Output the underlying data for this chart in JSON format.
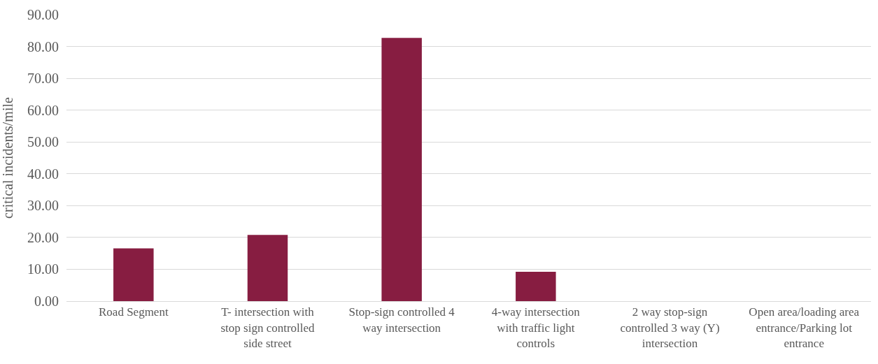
{
  "chart_data": {
    "type": "bar",
    "ylabel": "critical incidents/mile",
    "categories": [
      "Road Segment",
      "T- intersection with stop sign controlled side street",
      "Stop-sign controlled 4 way intersection",
      "4-way intersection with traffic light controls",
      "2 way stop-sign controlled 3 way (Y) intersection",
      "Open area/loading area entrance/Parking lot entrance"
    ],
    "values": [
      16.6,
      20.8,
      82.7,
      9.2,
      0,
      0
    ],
    "color": "#871d41",
    "ylim": [
      0,
      90
    ],
    "yticks": [
      {
        "value": 0,
        "label": "0.00"
      },
      {
        "value": 10,
        "label": "10.00"
      },
      {
        "value": 20,
        "label": "20.00"
      },
      {
        "value": 30,
        "label": "30.00"
      },
      {
        "value": 40,
        "label": "40.00"
      },
      {
        "value": 50,
        "label": "50.00"
      },
      {
        "value": 60,
        "label": "60.00"
      },
      {
        "value": 70,
        "label": "70.00"
      },
      {
        "value": 80,
        "label": "80.00"
      },
      {
        "value": 90,
        "label": "90.00"
      }
    ],
    "grid": "y",
    "legend": false
  }
}
